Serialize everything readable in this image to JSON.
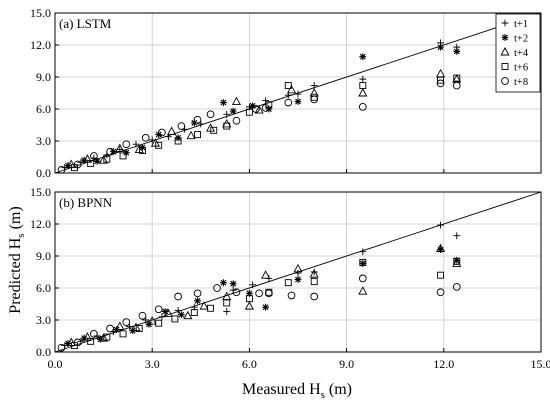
{
  "figure": {
    "ylabel": "Predicted H",
    "ylabel_sub": "s",
    "ylabel_unit": " (m)",
    "xlabel": "Measured H",
    "xlabel_sub": "s",
    "xlabel_unit": " (m)"
  },
  "legend": {
    "items": [
      {
        "label": "t+1",
        "marker": "plus"
      },
      {
        "label": "t+2",
        "marker": "asterisk"
      },
      {
        "label": "t+4",
        "marker": "triangle"
      },
      {
        "label": "t+6",
        "marker": "square"
      },
      {
        "label": "t+8",
        "marker": "circle"
      }
    ]
  },
  "chart_data": [
    {
      "type": "scatter",
      "panel_label": "(a) LSTM",
      "xlim": [
        0,
        15
      ],
      "ylim": [
        0,
        15
      ],
      "x_ticks": [
        "0.0",
        "3.0",
        "6.0",
        "9.0",
        "12.0",
        "15.0"
      ],
      "y_ticks": [
        "0.0",
        "3.0",
        "6.0",
        "9.0",
        "12.0",
        "15.0"
      ],
      "grid": true,
      "legend_position": "top-right",
      "reference_line": "y = x",
      "series": [
        {
          "name": "t+1",
          "marker": "plus",
          "points": [
            [
              0.3,
              0.5
            ],
            [
              0.8,
              1.0
            ],
            [
              1.2,
              1.4
            ],
            [
              1.6,
              1.7
            ],
            [
              2.0,
              2.2
            ],
            [
              2.5,
              2.7
            ],
            [
              3.0,
              3.1
            ],
            [
              3.5,
              3.4
            ],
            [
              4.0,
              4.1
            ],
            [
              4.5,
              4.6
            ],
            [
              5.3,
              5.5
            ],
            [
              6.0,
              6.2
            ],
            [
              6.5,
              6.8
            ],
            [
              7.2,
              7.3
            ],
            [
              7.5,
              7.4
            ],
            [
              8.0,
              8.2
            ],
            [
              9.5,
              8.8
            ],
            [
              11.9,
              12.2
            ],
            [
              12.4,
              11.8
            ]
          ]
        },
        {
          "name": "t+2",
          "marker": "asterisk",
          "points": [
            [
              0.4,
              0.7
            ],
            [
              0.9,
              1.2
            ],
            [
              1.3,
              1.1
            ],
            [
              1.8,
              2.0
            ],
            [
              2.2,
              1.9
            ],
            [
              2.7,
              2.4
            ],
            [
              3.2,
              3.6
            ],
            [
              3.8,
              3.3
            ],
            [
              4.3,
              4.7
            ],
            [
              5.2,
              6.6
            ],
            [
              5.5,
              5.8
            ],
            [
              6.1,
              6.3
            ],
            [
              6.6,
              6.0
            ],
            [
              7.5,
              6.7
            ],
            [
              9.5,
              10.9
            ],
            [
              11.9,
              11.8
            ],
            [
              12.4,
              11.4
            ]
          ]
        },
        {
          "name": "t+4",
          "marker": "triangle",
          "points": [
            [
              0.5,
              0.8
            ],
            [
              1.0,
              1.3
            ],
            [
              1.5,
              1.2
            ],
            [
              2.0,
              2.3
            ],
            [
              2.6,
              2.2
            ],
            [
              3.1,
              2.8
            ],
            [
              3.6,
              3.9
            ],
            [
              4.2,
              3.5
            ],
            [
              4.8,
              4.2
            ],
            [
              5.3,
              4.6
            ],
            [
              5.6,
              6.7
            ],
            [
              6.3,
              5.9
            ],
            [
              7.3,
              7.8
            ],
            [
              8.0,
              7.5
            ],
            [
              9.5,
              7.5
            ],
            [
              11.9,
              9.3
            ],
            [
              12.4,
              8.8
            ]
          ]
        },
        {
          "name": "t+6",
          "marker": "square",
          "points": [
            [
              0.6,
              0.5
            ],
            [
              1.1,
              0.9
            ],
            [
              1.6,
              1.3
            ],
            [
              2.1,
              1.6
            ],
            [
              2.7,
              2.1
            ],
            [
              3.2,
              2.6
            ],
            [
              3.8,
              3.0
            ],
            [
              4.4,
              3.6
            ],
            [
              4.9,
              4.0
            ],
            [
              5.3,
              4.4
            ],
            [
              6.0,
              5.7
            ],
            [
              6.6,
              6.4
            ],
            [
              7.2,
              8.2
            ],
            [
              8.0,
              7.1
            ],
            [
              9.5,
              8.2
            ],
            [
              11.9,
              8.7
            ],
            [
              12.4,
              8.9
            ]
          ]
        },
        {
          "name": "t+8",
          "marker": "circle",
          "points": [
            [
              0.2,
              0.3
            ],
            [
              0.7,
              0.8
            ],
            [
              1.2,
              1.6
            ],
            [
              1.7,
              2.0
            ],
            [
              2.2,
              2.7
            ],
            [
              2.8,
              3.3
            ],
            [
              3.3,
              3.8
            ],
            [
              3.9,
              4.4
            ],
            [
              4.4,
              5.0
            ],
            [
              4.8,
              5.5
            ],
            [
              5.6,
              4.9
            ],
            [
              6.2,
              6.0
            ],
            [
              6.5,
              6.1
            ],
            [
              7.2,
              6.6
            ],
            [
              8.0,
              6.9
            ],
            [
              9.5,
              6.2
            ],
            [
              11.9,
              8.4
            ],
            [
              12.4,
              8.2
            ]
          ]
        }
      ]
    },
    {
      "type": "scatter",
      "panel_label": "(b) BPNN",
      "xlim": [
        0,
        15
      ],
      "ylim": [
        0,
        15
      ],
      "x_ticks": [
        "0.0",
        "3.0",
        "6.0",
        "9.0",
        "12.0",
        "15.0"
      ],
      "y_ticks": [
        "0.0",
        "3.0",
        "6.0",
        "9.0",
        "12.0",
        "15.0"
      ],
      "grid": true,
      "reference_line": "y = x",
      "series": [
        {
          "name": "t+1",
          "marker": "plus",
          "points": [
            [
              0.3,
              0.6
            ],
            [
              0.8,
              1.0
            ],
            [
              1.3,
              1.5
            ],
            [
              1.8,
              1.9
            ],
            [
              2.3,
              2.4
            ],
            [
              2.8,
              3.0
            ],
            [
              3.3,
              3.3
            ],
            [
              3.8,
              3.9
            ],
            [
              4.3,
              4.2
            ],
            [
              5.3,
              3.8
            ],
            [
              5.5,
              5.8
            ],
            [
              6.1,
              6.3
            ],
            [
              6.6,
              6.9
            ],
            [
              7.5,
              7.4
            ],
            [
              8.0,
              7.5
            ],
            [
              9.5,
              9.4
            ],
            [
              11.9,
              11.9
            ],
            [
              12.4,
              10.9
            ]
          ]
        },
        {
          "name": "t+2",
          "marker": "asterisk",
          "points": [
            [
              0.4,
              0.8
            ],
            [
              0.9,
              1.3
            ],
            [
              1.4,
              1.2
            ],
            [
              1.9,
              2.1
            ],
            [
              2.4,
              2.0
            ],
            [
              2.9,
              2.6
            ],
            [
              3.4,
              3.8
            ],
            [
              3.9,
              3.5
            ],
            [
              4.4,
              4.8
            ],
            [
              5.2,
              6.5
            ],
            [
              5.5,
              6.4
            ],
            [
              6.0,
              5.5
            ],
            [
              6.5,
              4.2
            ],
            [
              7.5,
              6.8
            ],
            [
              9.5,
              8.3
            ],
            [
              11.9,
              9.6
            ],
            [
              12.4,
              8.6
            ]
          ]
        },
        {
          "name": "t+4",
          "marker": "triangle",
          "points": [
            [
              0.5,
              0.9
            ],
            [
              1.0,
              1.4
            ],
            [
              1.5,
              1.3
            ],
            [
              2.0,
              2.4
            ],
            [
              2.5,
              2.3
            ],
            [
              3.0,
              2.9
            ],
            [
              3.5,
              3.6
            ],
            [
              4.1,
              3.4
            ],
            [
              4.6,
              4.3
            ],
            [
              5.3,
              5.2
            ],
            [
              6.0,
              4.3
            ],
            [
              6.5,
              7.2
            ],
            [
              7.5,
              7.8
            ],
            [
              8.0,
              7.3
            ],
            [
              9.5,
              5.7
            ],
            [
              11.9,
              9.7
            ],
            [
              12.4,
              8.3
            ]
          ]
        },
        {
          "name": "t+6",
          "marker": "square",
          "points": [
            [
              0.6,
              0.6
            ],
            [
              1.1,
              1.0
            ],
            [
              1.6,
              1.4
            ],
            [
              2.1,
              1.7
            ],
            [
              2.6,
              2.2
            ],
            [
              3.2,
              2.7
            ],
            [
              3.7,
              3.1
            ],
            [
              4.3,
              3.7
            ],
            [
              4.8,
              4.1
            ],
            [
              5.3,
              4.6
            ],
            [
              6.0,
              5.0
            ],
            [
              6.6,
              5.6
            ],
            [
              7.2,
              6.5
            ],
            [
              8.0,
              6.6
            ],
            [
              9.5,
              8.4
            ],
            [
              11.9,
              7.2
            ],
            [
              12.4,
              8.5
            ]
          ]
        },
        {
          "name": "t+8",
          "marker": "circle",
          "points": [
            [
              0.2,
              0.4
            ],
            [
              0.7,
              0.9
            ],
            [
              1.2,
              1.7
            ],
            [
              1.7,
              2.2
            ],
            [
              2.2,
              2.8
            ],
            [
              2.7,
              3.4
            ],
            [
              3.2,
              4.0
            ],
            [
              3.8,
              5.2
            ],
            [
              4.4,
              5.5
            ],
            [
              5.0,
              6.0
            ],
            [
              5.6,
              5.6
            ],
            [
              6.3,
              5.5
            ],
            [
              6.6,
              5.5
            ],
            [
              7.3,
              5.3
            ],
            [
              8.0,
              5.2
            ],
            [
              9.5,
              6.9
            ],
            [
              11.9,
              5.6
            ],
            [
              12.4,
              6.1
            ]
          ]
        }
      ]
    }
  ]
}
